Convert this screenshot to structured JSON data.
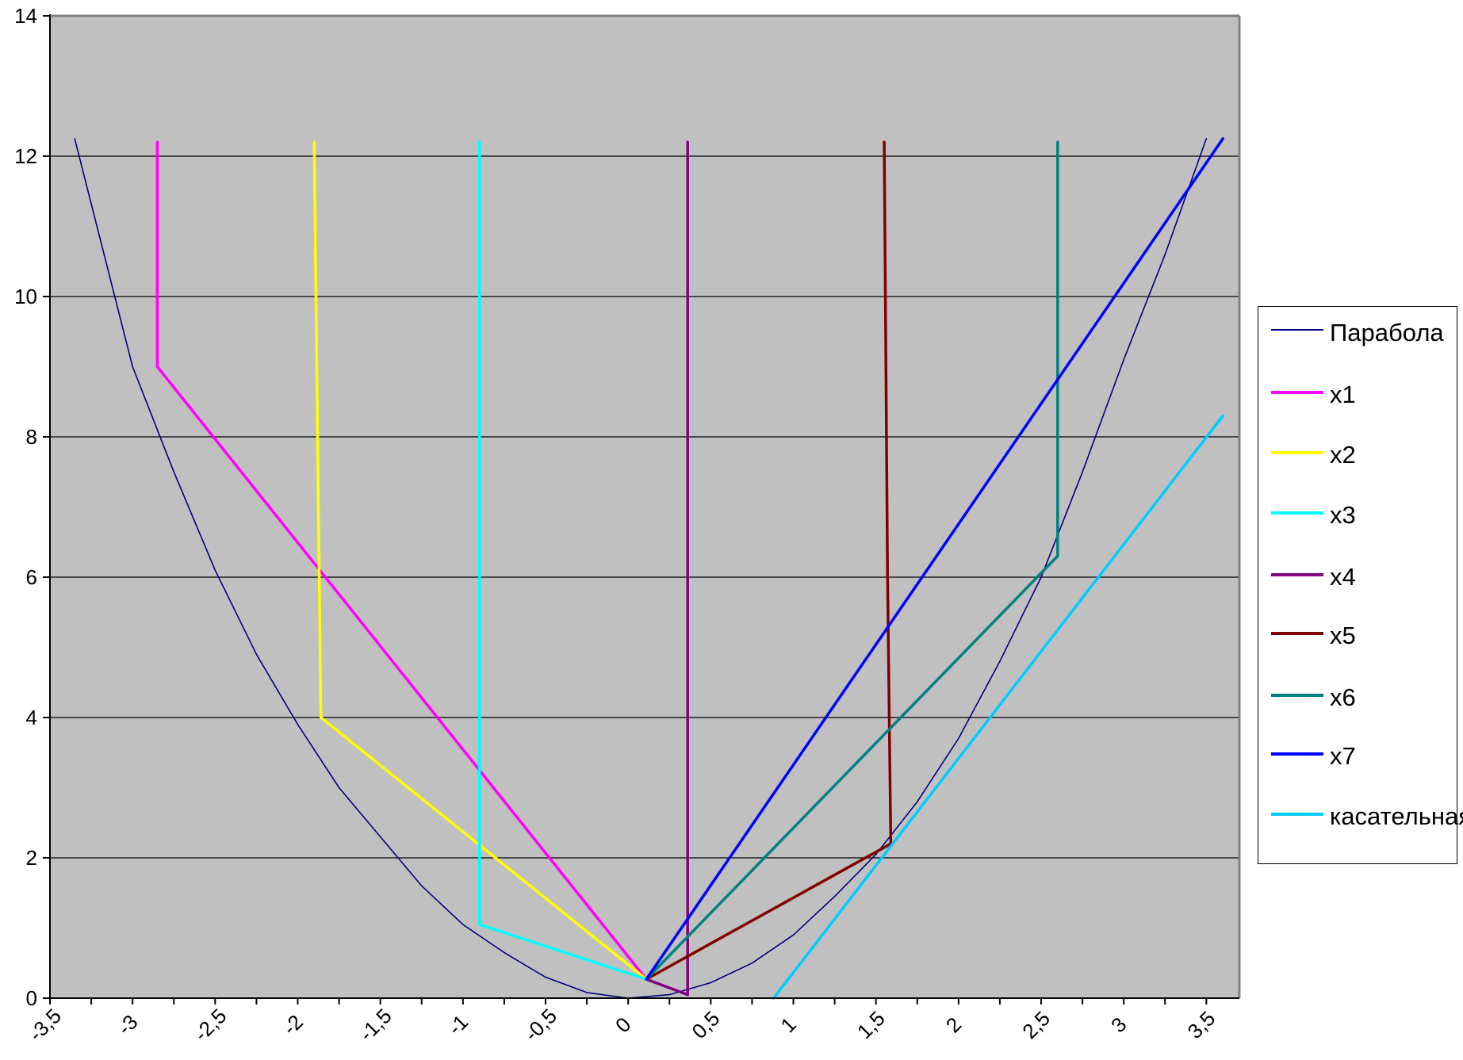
{
  "chart_data": {
    "type": "line",
    "title": "",
    "xlabel": "",
    "ylabel": "",
    "xlim": [
      -3.5,
      3.7
    ],
    "ylim": [
      0,
      14
    ],
    "x_ticks": [
      -3.5,
      -3,
      -2.5,
      -2,
      -1.5,
      -1,
      -0.5,
      0,
      0.5,
      1,
      1.5,
      2,
      2.5,
      3,
      3.5
    ],
    "x_tick_labels": [
      "-3,5",
      "-3",
      "-2,5",
      "-2",
      "-1,5",
      "-1",
      "-0,5",
      "0",
      "0,5",
      "1",
      "1,5",
      "2",
      "2,5",
      "3",
      "3,5"
    ],
    "y_ticks": [
      0,
      2,
      4,
      6,
      8,
      10,
      12,
      14
    ],
    "y_tick_labels": [
      "0",
      "2",
      "4",
      "6",
      "8",
      "10",
      "12",
      "14"
    ],
    "grid": "horizontal",
    "legend_position": "right",
    "plot_background": "#c0c0c0",
    "series": [
      {
        "name": "Парабола",
        "color": "#000080",
        "width": 1.6,
        "x": [
          -3.35,
          -3.0,
          -2.75,
          -2.5,
          -2.25,
          -2.0,
          -1.75,
          -1.5,
          -1.25,
          -1.0,
          -0.75,
          -0.5,
          -0.25,
          0.0,
          0.25,
          0.5,
          0.75,
          1.0,
          1.25,
          1.5,
          1.75,
          2.0,
          2.25,
          2.5,
          2.75,
          3.0,
          3.25,
          3.5
        ],
        "y": [
          12.25,
          9.0,
          7.5,
          6.1,
          4.9,
          3.9,
          3.0,
          2.3,
          1.6,
          1.05,
          0.65,
          0.3,
          0.08,
          0.0,
          0.05,
          0.22,
          0.5,
          0.9,
          1.45,
          2.05,
          2.8,
          3.7,
          4.8,
          6.0,
          7.5,
          9.1,
          10.6,
          12.25
        ]
      },
      {
        "name": "x1",
        "color": "#ff00ff",
        "width": 3.5,
        "x": [
          -2.85,
          -2.85,
          0.11
        ],
        "y": [
          12.2,
          9.0,
          0.27
        ]
      },
      {
        "name": "x2",
        "color": "#ffff00",
        "width": 3.5,
        "x": [
          -1.9,
          -1.88,
          -1.86,
          0.11
        ],
        "y": [
          12.2,
          8.0,
          4.0,
          0.27
        ]
      },
      {
        "name": "x3",
        "color": "#00ffff",
        "width": 3.5,
        "x": [
          -0.9,
          -0.9,
          0.11
        ],
        "y": [
          12.2,
          1.05,
          0.27
        ]
      },
      {
        "name": "x4",
        "color": "#800080",
        "width": 3.5,
        "x": [
          0.36,
          0.36,
          0.11
        ],
        "y": [
          12.2,
          0.05,
          0.27
        ]
      },
      {
        "name": "x5",
        "color": "#800000",
        "width": 3.5,
        "x": [
          1.55,
          1.57,
          1.59,
          0.11
        ],
        "y": [
          12.2,
          6.0,
          2.2,
          0.27
        ]
      },
      {
        "name": "x6",
        "color": "#008080",
        "width": 3.5,
        "x": [
          2.6,
          2.6,
          0.11
        ],
        "y": [
          12.2,
          6.3,
          0.27
        ]
      },
      {
        "name": "x7",
        "color": "#0000ff",
        "width": 3.5,
        "x": [
          3.6,
          0.11
        ],
        "y": [
          12.25,
          0.27
        ]
      },
      {
        "name": "касательная",
        "color": "#00ccff",
        "width": 3.5,
        "x": [
          0.88,
          3.6
        ],
        "y": [
          0.0,
          8.3
        ]
      }
    ]
  }
}
